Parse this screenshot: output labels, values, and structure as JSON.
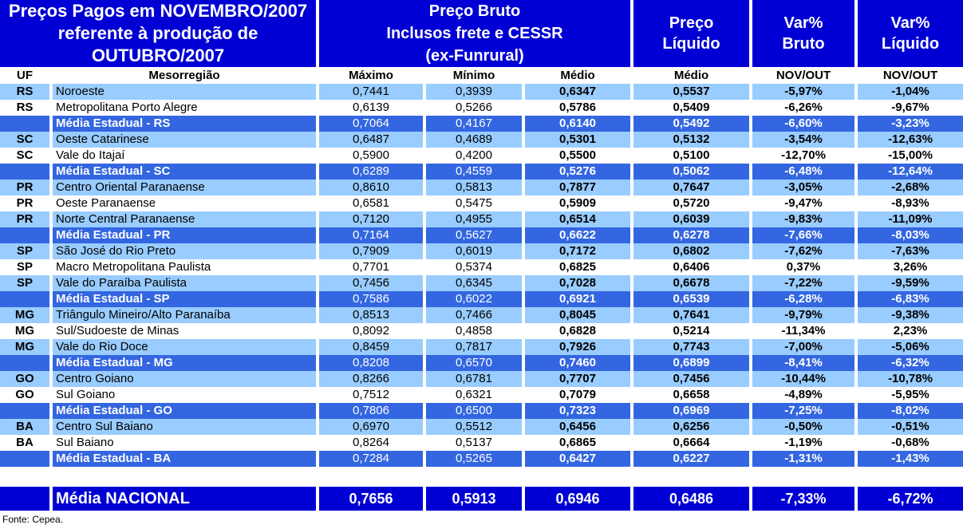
{
  "title": {
    "line1": "Preços Pagos em NOVEMBRO/2007",
    "line2": "referente à produção de",
    "line3": "OUTUBRO/2007"
  },
  "header_groups": {
    "preco_bruto_line1": "Preço Bruto",
    "preco_bruto_line2": "Inclusos frete e CESSR",
    "preco_bruto_line3": "(ex-Funrural)",
    "preco_liquido_line1": "Preço",
    "preco_liquido_line2": "Líquido",
    "var_bruto_line1": "Var%",
    "var_bruto_line2": "Bruto",
    "var_liquido_line1": "Var%",
    "var_liquido_line2": "Líquido"
  },
  "subheaders": {
    "uf": "UF",
    "mesorregiao": "Mesorregião",
    "maximo": "Máximo",
    "minimo": "Mínimo",
    "medio": "Médio",
    "medio_liquido": "Médio",
    "nov_out_bruto": "NOV/OUT",
    "nov_out_liquido": "NOV/OUT"
  },
  "rows": [
    {
      "type": "light",
      "uf": "RS",
      "name": "Noroeste",
      "maximo": "0,7441",
      "minimo": "0,3939",
      "medio": "0,6347",
      "liquido": "0,5537",
      "var_bruto": "-5,97%",
      "var_liquido": "-1,04%"
    },
    {
      "type": "white",
      "uf": "RS",
      "name": "Metropolitana Porto Alegre",
      "maximo": "0,6139",
      "minimo": "0,5266",
      "medio": "0,5786",
      "liquido": "0,5409",
      "var_bruto": "-6,26%",
      "var_liquido": "-9,67%"
    },
    {
      "type": "media",
      "uf": "",
      "name": "Média Estadual - RS",
      "maximo": "0,7064",
      "minimo": "0,4167",
      "medio": "0,6140",
      "liquido": "0,5492",
      "var_bruto": "-6,60%",
      "var_liquido": "-3,23%"
    },
    {
      "type": "light",
      "uf": "SC",
      "name": "Oeste Catarinese",
      "maximo": "0,6487",
      "minimo": "0,4689",
      "medio": "0,5301",
      "liquido": "0,5132",
      "var_bruto": "-3,54%",
      "var_liquido": "-12,63%"
    },
    {
      "type": "white",
      "uf": "SC",
      "name": "Vale do Itajaí",
      "maximo": "0,5900",
      "minimo": "0,4200",
      "medio": "0,5500",
      "liquido": "0,5100",
      "var_bruto": "-12,70%",
      "var_liquido": "-15,00%"
    },
    {
      "type": "media",
      "uf": "",
      "name": "Média Estadual - SC",
      "maximo": "0,6289",
      "minimo": "0,4559",
      "medio": "0,5276",
      "liquido": "0,5062",
      "var_bruto": "-6,48%",
      "var_liquido": "-12,64%"
    },
    {
      "type": "light",
      "uf": "PR",
      "name": "Centro Oriental Paranaense",
      "maximo": "0,8610",
      "minimo": "0,5813",
      "medio": "0,7877",
      "liquido": "0,7647",
      "var_bruto": "-3,05%",
      "var_liquido": "-2,68%"
    },
    {
      "type": "white",
      "uf": "PR",
      "name": "Oeste Paranaense",
      "maximo": "0,6581",
      "minimo": "0,5475",
      "medio": "0,5909",
      "liquido": "0,5720",
      "var_bruto": "-9,47%",
      "var_liquido": "-8,93%"
    },
    {
      "type": "light",
      "uf": "PR",
      "name": "Norte Central Paranaense",
      "maximo": "0,7120",
      "minimo": "0,4955",
      "medio": "0,6514",
      "liquido": "0,6039",
      "var_bruto": "-9,83%",
      "var_liquido": "-11,09%"
    },
    {
      "type": "media",
      "uf": "",
      "name": "Média Estadual - PR",
      "maximo": "0,7164",
      "minimo": "0,5627",
      "medio": "0,6622",
      "liquido": "0,6278",
      "var_bruto": "-7,66%",
      "var_liquido": "-8,03%"
    },
    {
      "type": "light",
      "uf": "SP",
      "name": "São José do Rio Preto",
      "maximo": "0,7909",
      "minimo": "0,6019",
      "medio": "0,7172",
      "liquido": "0,6802",
      "var_bruto": "-7,62%",
      "var_liquido": "-7,63%"
    },
    {
      "type": "white",
      "uf": "SP",
      "name": "Macro Metropolitana Paulista",
      "maximo": "0,7701",
      "minimo": "0,5374",
      "medio": "0,6825",
      "liquido": "0,6406",
      "var_bruto": "0,37%",
      "var_liquido": "3,26%"
    },
    {
      "type": "light",
      "uf": "SP",
      "name": "Vale do Paraíba Paulista",
      "maximo": "0,7456",
      "minimo": "0,6345",
      "medio": "0,7028",
      "liquido": "0,6678",
      "var_bruto": "-7,22%",
      "var_liquido": "-9,59%"
    },
    {
      "type": "media",
      "uf": "",
      "name": "Média Estadual - SP",
      "maximo": "0,7586",
      "minimo": "0,6022",
      "medio": "0,6921",
      "liquido": "0,6539",
      "var_bruto": "-6,28%",
      "var_liquido": "-6,83%"
    },
    {
      "type": "light",
      "uf": "MG",
      "name": "Triângulo Mineiro/Alto Paranaíba",
      "maximo": "0,8513",
      "minimo": "0,7466",
      "medio": "0,8045",
      "liquido": "0,7641",
      "var_bruto": "-9,79%",
      "var_liquido": "-9,38%"
    },
    {
      "type": "white",
      "uf": "MG",
      "name": "Sul/Sudoeste de Minas",
      "maximo": "0,8092",
      "minimo": "0,4858",
      "medio": "0,6828",
      "liquido": "0,5214",
      "var_bruto": "-11,34%",
      "var_liquido": "2,23%"
    },
    {
      "type": "light",
      "uf": "MG",
      "name": "Vale do Rio Doce",
      "maximo": "0,8459",
      "minimo": "0,7817",
      "medio": "0,7926",
      "liquido": "0,7743",
      "var_bruto": "-7,00%",
      "var_liquido": "-5,06%"
    },
    {
      "type": "media",
      "uf": "",
      "name": "Média Estadual - MG",
      "maximo": "0,8208",
      "minimo": "0,6570",
      "medio": "0,7460",
      "liquido": "0,6899",
      "var_bruto": "-8,41%",
      "var_liquido": "-6,32%"
    },
    {
      "type": "light",
      "uf": "GO",
      "name": "Centro Goiano",
      "maximo": "0,8266",
      "minimo": "0,6781",
      "medio": "0,7707",
      "liquido": "0,7456",
      "var_bruto": "-10,44%",
      "var_liquido": "-10,78%"
    },
    {
      "type": "white",
      "uf": "GO",
      "name": "Sul Goiano",
      "maximo": "0,7512",
      "minimo": "0,6321",
      "medio": "0,7079",
      "liquido": "0,6658",
      "var_bruto": "-4,89%",
      "var_liquido": "-5,95%"
    },
    {
      "type": "media",
      "uf": "",
      "name": "Média Estadual - GO",
      "maximo": "0,7806",
      "minimo": "0,6500",
      "medio": "0,7323",
      "liquido": "0,6969",
      "var_bruto": "-7,25%",
      "var_liquido": "-8,02%"
    },
    {
      "type": "light",
      "uf": "BA",
      "name": "Centro Sul Baiano",
      "maximo": "0,6970",
      "minimo": "0,5512",
      "medio": "0,6456",
      "liquido": "0,6256",
      "var_bruto": "-0,50%",
      "var_liquido": "-0,51%"
    },
    {
      "type": "white",
      "uf": "BA",
      "name": "Sul Baiano",
      "maximo": "0,8264",
      "minimo": "0,5137",
      "medio": "0,6865",
      "liquido": "0,6664",
      "var_bruto": "-1,19%",
      "var_liquido": "-0,68%"
    },
    {
      "type": "media",
      "uf": "",
      "name": "Média Estadual - BA",
      "maximo": "0,7284",
      "minimo": "0,5265",
      "medio": "0,6427",
      "liquido": "0,6227",
      "var_bruto": "-1,31%",
      "var_liquido": "-1,43%"
    }
  ],
  "national": {
    "label": "Média NACIONAL",
    "maximo": "0,7656",
    "minimo": "0,5913",
    "medio": "0,6946",
    "liquido": "0,6486",
    "var_bruto": "-7,33%",
    "var_liquido": "-6,72%"
  },
  "footer": "Fonte: Cepea.",
  "colors": {
    "header_blue": "#0000D4",
    "media_row_blue": "#3366E0",
    "light_row_blue": "#99CCFF"
  }
}
